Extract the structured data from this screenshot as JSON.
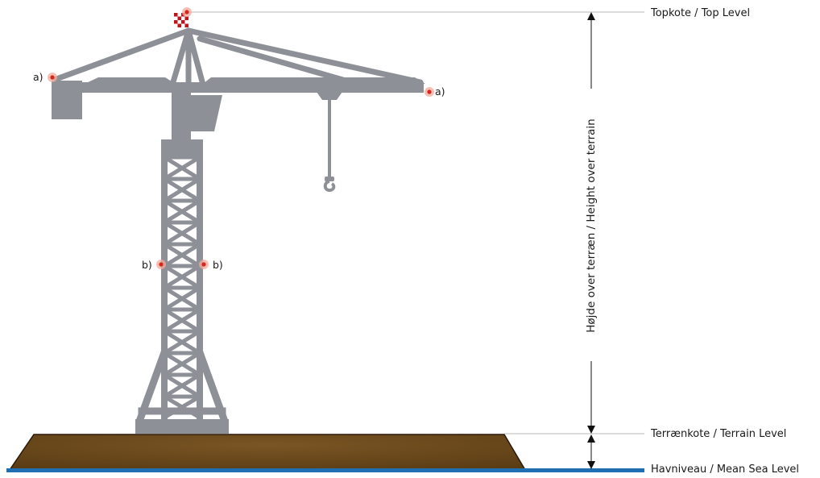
{
  "labels": {
    "top_level": "Topkote / Top Level",
    "terrain_level": "Terrænkote / Terrain Level",
    "sea_level": "Havniveau / Mean Sea Level",
    "height_over_terrain": "Højde over terræn / Height over terrain"
  },
  "markers": {
    "jib_left": "a)",
    "jib_right": "a)",
    "mast_left": "b)",
    "mast_right": "b)"
  },
  "colors": {
    "crane": "#8e9097",
    "ground": "#6b4a1c",
    "ground_dark": "#2b1a08",
    "sea": "#1f6fb2",
    "light": "#d7261e",
    "light_glow": "#f2a99a",
    "guide_line": "#b9b9b9",
    "arrow": "#111111"
  },
  "icons": {
    "top_flag": "checkered-flag-icon",
    "obstruction_light": "red-light-icon"
  }
}
